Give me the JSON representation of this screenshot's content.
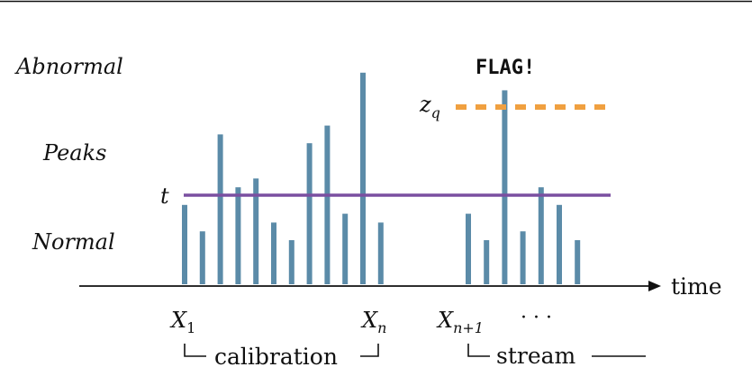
{
  "labels": {
    "abnormal": "Abnormal",
    "peaks": "Peaks",
    "normal": "Normal",
    "flag": "FLAG!",
    "time": "time",
    "t": "t",
    "zq_base": "z",
    "zq_sub": "q",
    "x1_base": "X",
    "x1_sub": "1",
    "xn_base": "X",
    "xn_sub": "n",
    "xn1_base": "X",
    "xn1_sub": "n+1",
    "dots": "· · ·",
    "calibration": "calibration",
    "stream": "stream"
  },
  "colors": {
    "bar": "#5b8ba8",
    "threshold": "#7a4fa0",
    "flag_line": "#f0a040",
    "axis": "#111111"
  },
  "chart_data": {
    "type": "bar",
    "threshold_t": 100,
    "threshold_zq": 200,
    "calibration_values": [
      90,
      60,
      170,
      110,
      120,
      70,
      50,
      160,
      180,
      80,
      240,
      70
    ],
    "stream_values": [
      80,
      50,
      220,
      60,
      110,
      90,
      50
    ]
  }
}
